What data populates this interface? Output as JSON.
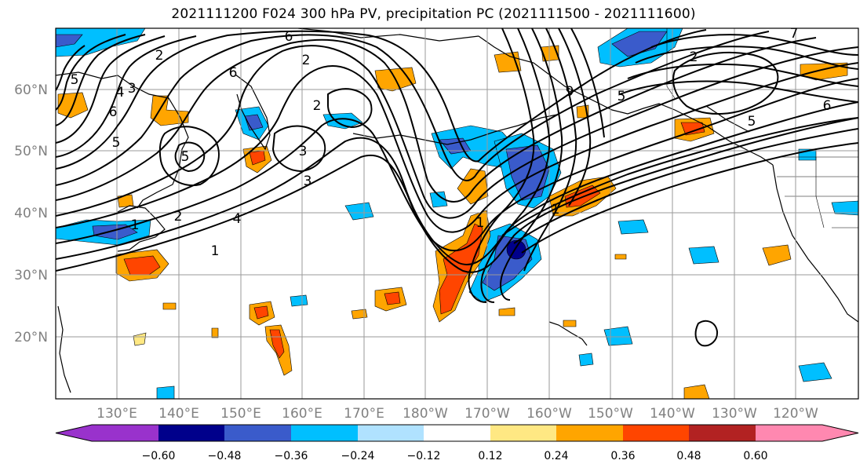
{
  "title": "2021111200 F024 300 hPa PV, precipitation PC (2021111500 - 2021111600)",
  "axes": {
    "lat_labels": [
      "60°N",
      "50°N",
      "40°N",
      "30°N",
      "20°N"
    ],
    "lon_labels": [
      "130°E",
      "140°E",
      "150°E",
      "160°E",
      "170°E",
      "180°W",
      "170°W",
      "160°W",
      "150°W",
      "140°W",
      "130°W",
      "120°W"
    ]
  },
  "colorbar": {
    "ticks": [
      "−0.60",
      "−0.48",
      "−0.36",
      "−0.24",
      "−0.12",
      "0.12",
      "0.24",
      "0.36",
      "0.48",
      "0.60"
    ],
    "colors": [
      "#9932CC",
      "#00008B",
      "#3A5BCB",
      "#00BFFF",
      "#B0E2FF",
      "#FFFFFF",
      "#FFE883",
      "#FFA500",
      "#FF4500",
      "#B22222",
      "#FF88B0"
    ]
  },
  "contour_labels": [
    {
      "text": "6"
    },
    {
      "text": "2"
    },
    {
      "text": "5"
    },
    {
      "text": "4"
    },
    {
      "text": "6"
    },
    {
      "text": "5"
    },
    {
      "text": "3"
    },
    {
      "text": "2"
    },
    {
      "text": "2"
    },
    {
      "text": "6"
    },
    {
      "text": "3"
    },
    {
      "text": "2"
    },
    {
      "text": "3"
    },
    {
      "text": "4"
    },
    {
      "text": "1"
    },
    {
      "text": "1"
    },
    {
      "text": "1"
    },
    {
      "text": "5"
    },
    {
      "text": "2"
    },
    {
      "text": "7"
    },
    {
      "text": "6"
    },
    {
      "text": "5"
    },
    {
      "text": "1"
    },
    {
      "text": "9"
    },
    {
      "text": "5"
    }
  ],
  "colors": {
    "frame": "#000000",
    "grid": "#9a9a9a",
    "tick_label": "#808080"
  }
}
